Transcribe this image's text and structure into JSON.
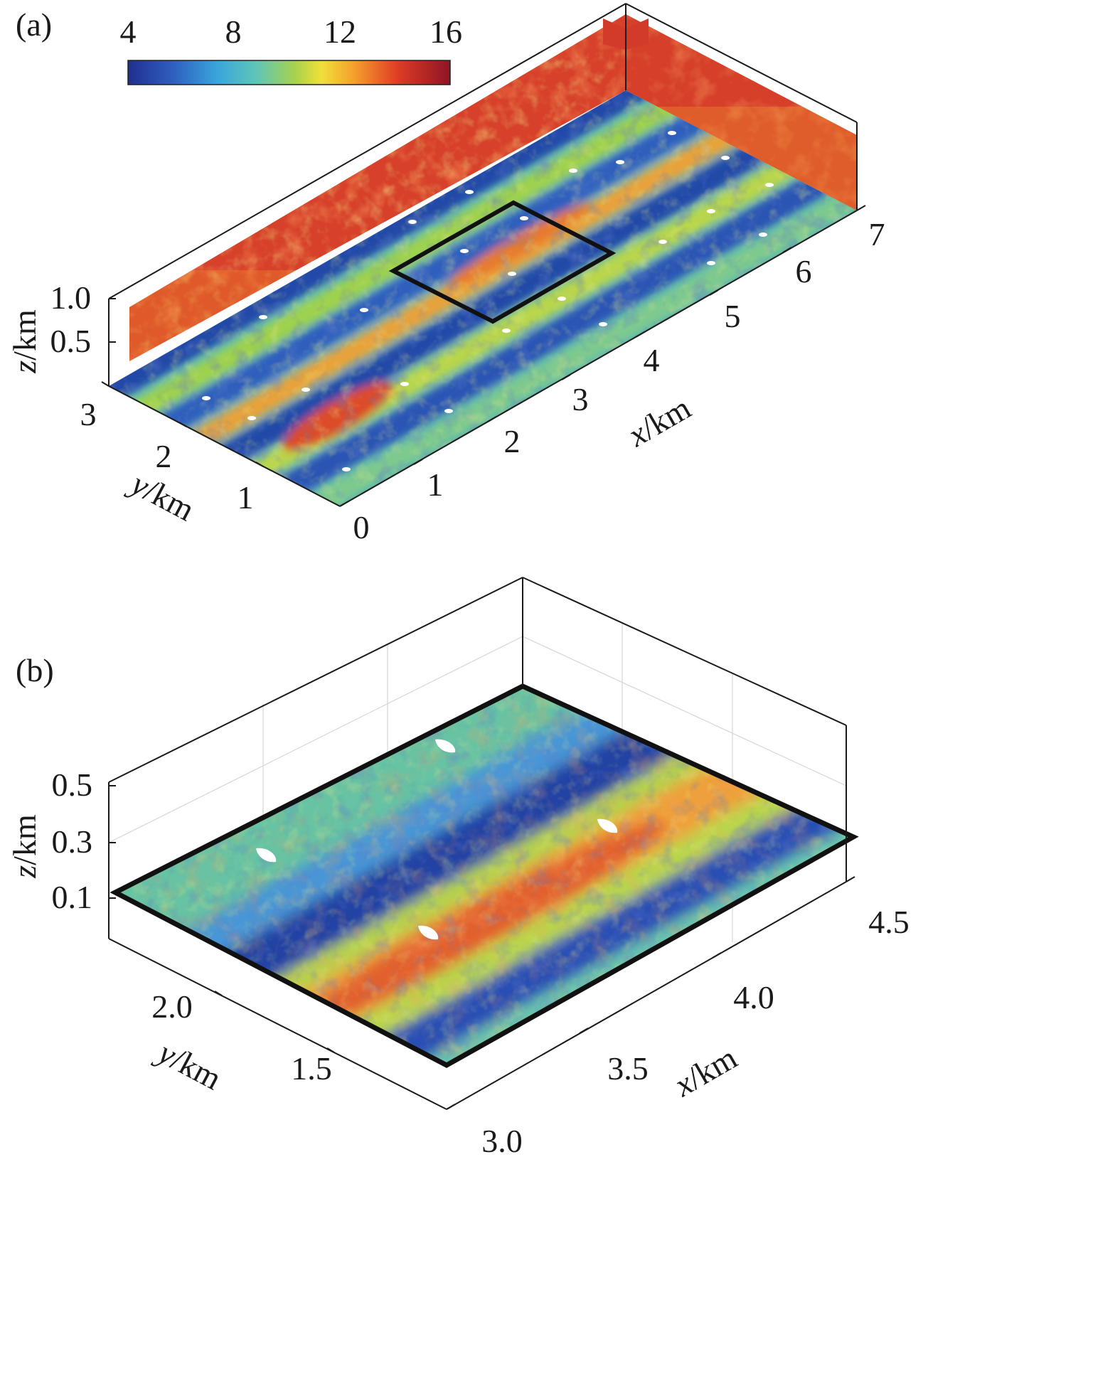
{
  "colorbar": {
    "tick_labels": [
      "4",
      "8",
      "12",
      "16"
    ],
    "stops": [
      "#1f2f8f",
      "#2f6fc7",
      "#3ab8d8",
      "#63c7a0",
      "#b7d44a",
      "#f2e23a",
      "#f59a2d",
      "#dd3b24",
      "#8e1425"
    ]
  },
  "panel_a": {
    "label": "(a)",
    "x_axis": {
      "var": "x",
      "unit": "/km",
      "ticks": [
        "0",
        "1",
        "2",
        "3",
        "4",
        "5",
        "6",
        "7"
      ]
    },
    "y_axis": {
      "var": "y",
      "unit": "/km",
      "ticks": [
        "1",
        "2",
        "3"
      ]
    },
    "z_axis": {
      "var": "z",
      "unit": "/km",
      "ticks": [
        "0.5",
        "1.0"
      ]
    }
  },
  "panel_b": {
    "label": "(b)",
    "x_axis": {
      "var": "x",
      "unit": "/km",
      "ticks": [
        "3.0",
        "3.5",
        "4.0",
        "4.5"
      ]
    },
    "y_axis": {
      "var": "y",
      "unit": "/km",
      "ticks": [
        "1.5",
        "2.0"
      ]
    },
    "z_axis": {
      "var": "z",
      "unit": "/km",
      "ticks": [
        "0.1",
        "0.3",
        "0.5"
      ]
    }
  },
  "colors": {
    "low": "#1f2f8f",
    "mid": "#63c7a0",
    "high": "#dd3b24",
    "turbine": "#ffffff",
    "frame": "#111111"
  }
}
